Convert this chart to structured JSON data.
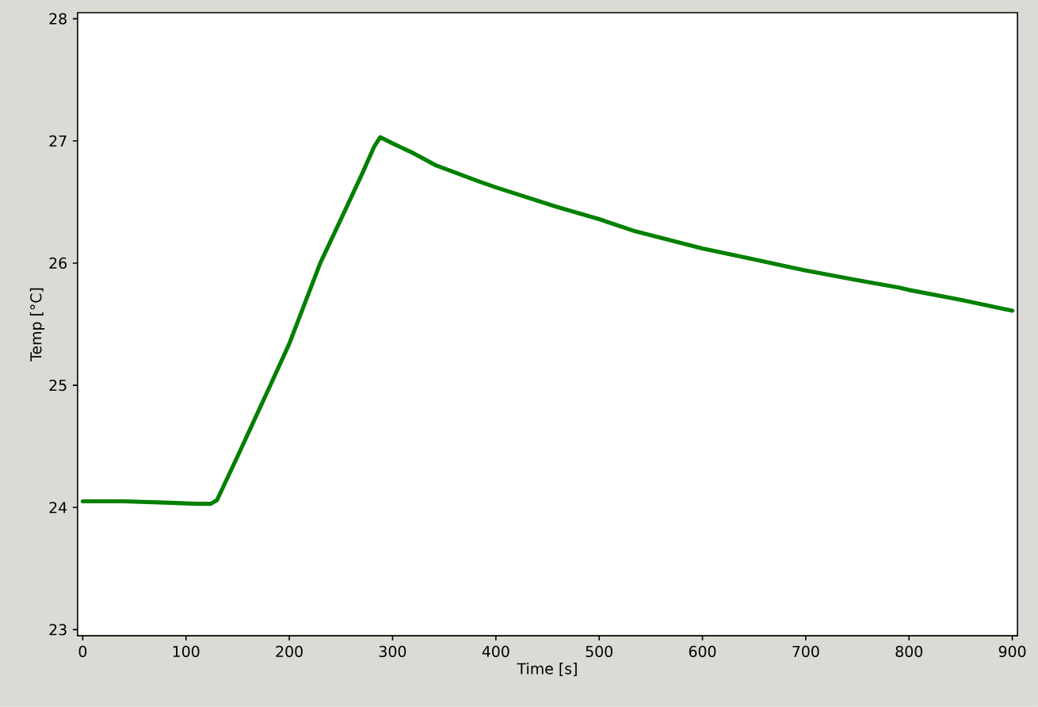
{
  "chart_data": {
    "type": "line",
    "xlabel": "Time [s]",
    "ylabel": "Temp [°C]",
    "xlim": [
      -5,
      905
    ],
    "ylim": [
      22.95,
      28.05
    ],
    "xticks": [
      0,
      100,
      200,
      300,
      400,
      500,
      600,
      700,
      800,
      900
    ],
    "yticks": [
      23,
      24,
      25,
      26,
      27,
      28
    ],
    "marker": "none",
    "line_style": "solid",
    "series": [
      {
        "color": "#008000",
        "x": [
          0,
          40,
          80,
          110,
          124,
          130,
          150,
          180,
          200,
          230,
          255,
          271,
          282,
          288,
          300,
          320,
          342,
          383,
          400,
          459,
          500,
          535,
          600,
          650,
          688,
          700,
          750,
          790,
          800,
          850,
          900
        ],
        "values": [
          24.05,
          24.05,
          24.04,
          24.03,
          24.03,
          24.06,
          24.42,
          24.97,
          25.34,
          26.0,
          26.45,
          26.74,
          26.95,
          27.03,
          26.98,
          26.9,
          26.8,
          26.67,
          26.62,
          26.46,
          26.36,
          26.26,
          26.12,
          26.03,
          25.96,
          25.94,
          25.86,
          25.8,
          25.78,
          25.7,
          25.61
        ]
      }
    ]
  }
}
